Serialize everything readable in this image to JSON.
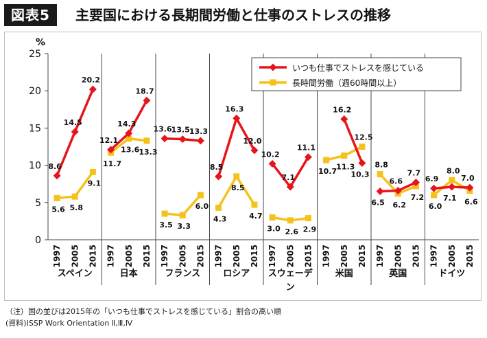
{
  "header": {
    "badge": "図表5",
    "title": "主要国における長期間労働と仕事のストレスの推移"
  },
  "notes": [
    "（注）国の並びは2015年の「いつも仕事でストレスを感じている」割合の高い順",
    "(資料)ISSP Work Orientation Ⅱ,Ⅲ,Ⅳ"
  ],
  "chart_data": {
    "type": "line",
    "ylabel": "%",
    "ylim": [
      0,
      25
    ],
    "yticks": [
      0,
      5,
      10,
      15,
      20,
      25
    ],
    "years": [
      "1997",
      "2005",
      "2015"
    ],
    "groups": [
      {
        "name": "スペイン",
        "stress": [
          8.6,
          14.5,
          20.2
        ],
        "hours": [
          5.6,
          5.8,
          9.1
        ],
        "stress_labels": [
          "8.6",
          "14.5",
          "20.2"
        ],
        "hours_labels": [
          "5.6",
          "5.8",
          "9.1"
        ]
      },
      {
        "name": "日本",
        "stress": [
          12.1,
          14.3,
          18.7
        ],
        "hours": [
          11.7,
          13.6,
          13.3
        ],
        "stress_labels": [
          "12.1",
          "14.3",
          "18.7"
        ],
        "hours_labels": [
          "11.7",
          "13.6",
          "13.3"
        ]
      },
      {
        "name": "フランス",
        "stress": [
          13.6,
          13.5,
          13.3
        ],
        "hours": [
          3.5,
          3.3,
          6.0
        ],
        "stress_labels": [
          "13.6",
          "13.5",
          "13.3"
        ],
        "hours_labels": [
          "3.5",
          "3.3",
          "6.0"
        ]
      },
      {
        "name": "ロシア",
        "stress": [
          8.5,
          16.3,
          12.0
        ],
        "hours": [
          4.3,
          8.5,
          4.7
        ],
        "stress_labels": [
          "8.5",
          "16.3",
          "12.0"
        ],
        "hours_labels": [
          "4.3",
          "8.5",
          "4.7"
        ]
      },
      {
        "name": "スウェーデン",
        "stress": [
          10.2,
          7.1,
          11.1
        ],
        "hours": [
          3.0,
          2.6,
          2.9
        ],
        "stress_labels": [
          "10.2",
          "7.1",
          "11.1"
        ],
        "hours_labels": [
          "3.0",
          "2.6",
          "2.9"
        ]
      },
      {
        "name": "米国",
        "stress": [
          null,
          16.2,
          10.3
        ],
        "hours": [
          10.7,
          11.3,
          12.5
        ],
        "stress_labels": [
          "",
          "16.2",
          "10.3"
        ],
        "hours_labels": [
          "10.7",
          "11.3",
          "12.5"
        ]
      },
      {
        "name": "英国",
        "stress": [
          6.5,
          6.6,
          7.7
        ],
        "hours": [
          8.8,
          6.2,
          7.2
        ],
        "stress_labels": [
          "6.5",
          "6.6",
          "7.7"
        ],
        "hours_labels": [
          "8.8",
          "6.2",
          "7.2"
        ]
      },
      {
        "name": "ドイツ",
        "stress": [
          6.9,
          7.1,
          7.0
        ],
        "hours": [
          6.0,
          8.0,
          6.6
        ],
        "stress_labels": [
          "6.9",
          "7.1",
          "7.0"
        ],
        "hours_labels": [
          "6.0",
          "8.0",
          "6.6"
        ]
      }
    ],
    "series": [
      {
        "key": "stress",
        "name": "いつも仕事でストレスを感じている",
        "color": "#e8141c"
      },
      {
        "key": "hours",
        "name": "長時間労働（週60時間以上）",
        "color": "#f5c21b"
      }
    ],
    "legend": "top-right",
    "grid": false
  }
}
